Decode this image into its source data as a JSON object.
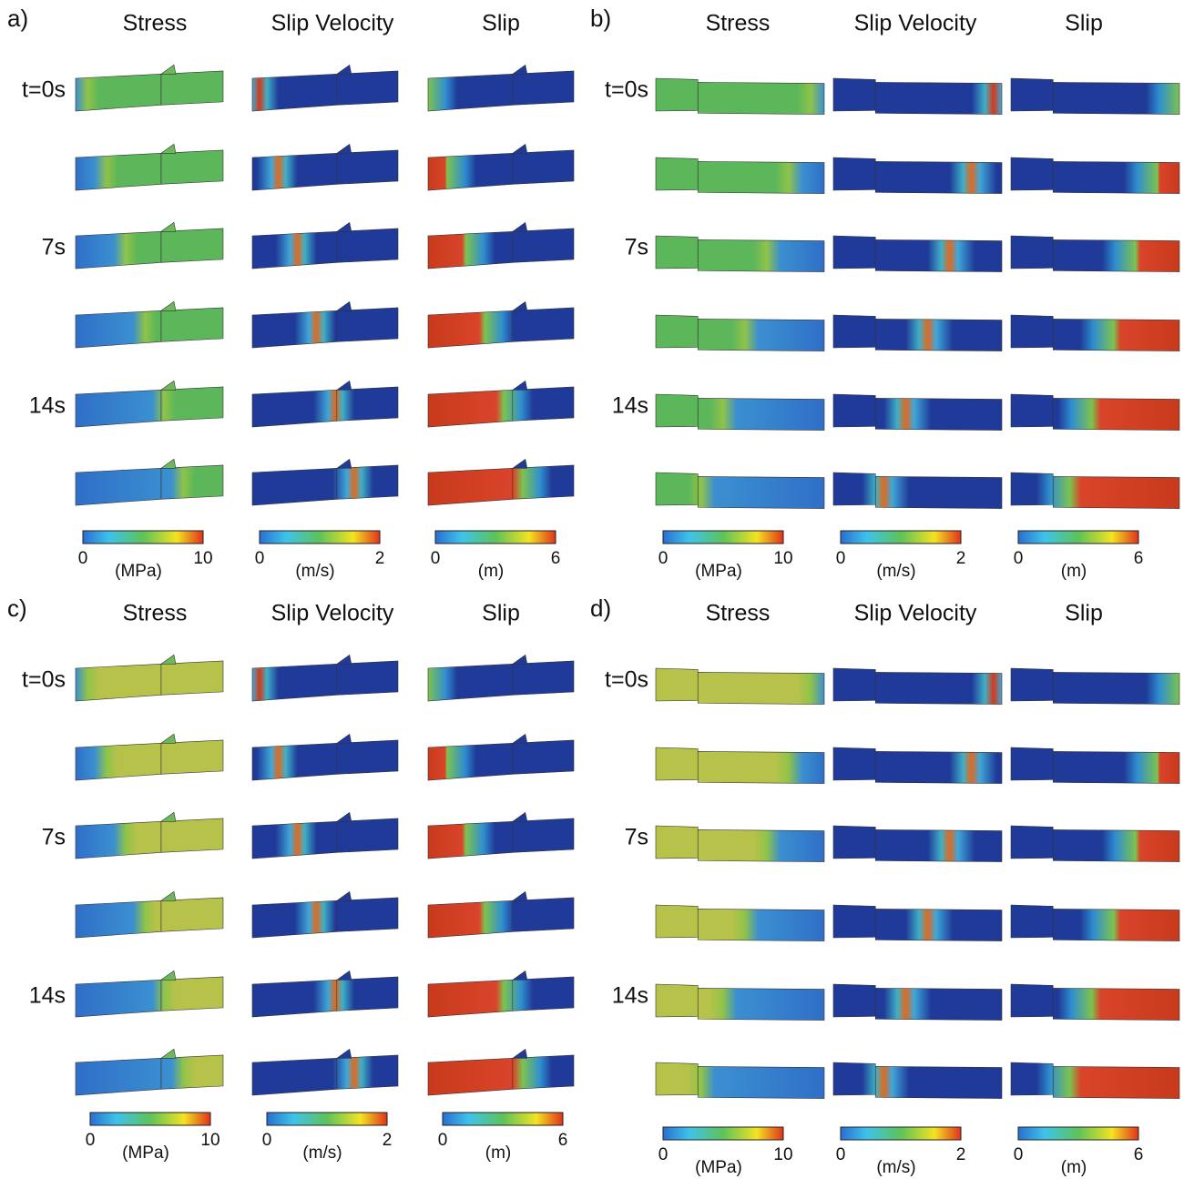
{
  "panels": [
    {
      "label": "a)",
      "columns": [
        "Stress",
        "Slip Velocity",
        "Slip"
      ],
      "time_labels": [
        "t=0s",
        "7s",
        "14s"
      ],
      "colorbars": [
        {
          "min": 0,
          "max": 10,
          "unit": "(MPa)"
        },
        {
          "min": 0,
          "max": 2,
          "unit": "(m/s)"
        },
        {
          "min": 0,
          "max": 6,
          "unit": "(m)"
        }
      ]
    },
    {
      "label": "b)",
      "columns": [
        "Stress",
        "Slip Velocity",
        "Slip"
      ],
      "time_labels": [
        "t=0s",
        "7s",
        "14s"
      ],
      "colorbars": [
        {
          "min": 0,
          "max": 10,
          "unit": "(MPa)"
        },
        {
          "min": 0,
          "max": 2,
          "unit": "(m/s)"
        },
        {
          "min": 0,
          "max": 6,
          "unit": "(m)"
        }
      ]
    },
    {
      "label": "c)",
      "columns": [
        "Stress",
        "Slip Velocity",
        "Slip"
      ],
      "time_labels": [
        "t=0s",
        "7s",
        "14s"
      ],
      "colorbars": [
        {
          "min": 0,
          "max": 10,
          "unit": "(MPa)"
        },
        {
          "min": 0,
          "max": 2,
          "unit": "(m/s)"
        },
        {
          "min": 0,
          "max": 6,
          "unit": "(m)"
        }
      ]
    },
    {
      "label": "d)",
      "columns": [
        "Stress",
        "Slip Velocity",
        "Slip"
      ],
      "time_labels": [
        "t=0s",
        "7s",
        "14s"
      ],
      "colorbars": [
        {
          "min": 0,
          "max": 10,
          "unit": "(MPa)"
        },
        {
          "min": 0,
          "max": 2,
          "unit": "(m/s)"
        },
        {
          "min": 0,
          "max": 6,
          "unit": "(m)"
        }
      ]
    }
  ]
}
